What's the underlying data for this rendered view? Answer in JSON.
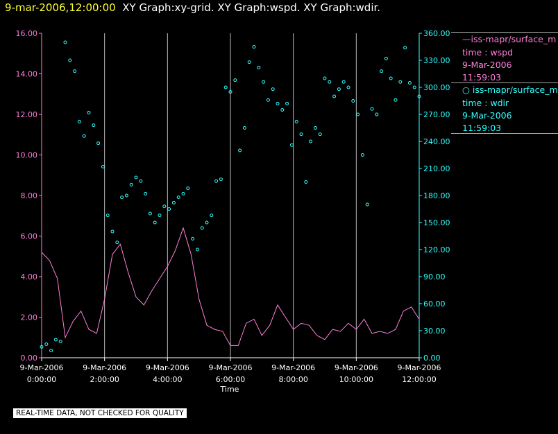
{
  "header": {
    "date_label": "9-mar-2006,12:00:00",
    "graphs_label": "XY Graph:xy-grid.  XY Graph:wspd.  XY Graph:wdir."
  },
  "legend": [
    {
      "line": "iss-mapr/surface_m",
      "var_label": "time : wspd",
      "date": "9-Mar-2006",
      "time": "11:59:03",
      "color": "#ff7fd9"
    },
    {
      "line": "iss-mapr/surface_m",
      "var_label": "time : wdir",
      "date": "9-Mar-2006",
      "time": "11:59:03",
      "color": "#33ffff"
    }
  ],
  "footer": {
    "quality_note": "REAL-TIME DATA, NOT CHECKED FOR QUALITY"
  },
  "chart_data": {
    "type": "line",
    "xlabel": "Time",
    "xlim": [
      "0:00:00",
      "12:00:00"
    ],
    "x_unit": "hours",
    "x_ticks": [
      {
        "hour": 0,
        "date": "9-Mar-2006",
        "time": "0:00:00"
      },
      {
        "hour": 2,
        "date": "9-Mar-2006",
        "time": "2:00:00"
      },
      {
        "hour": 4,
        "date": "9-Mar-2006",
        "time": "4:00:00"
      },
      {
        "hour": 6,
        "date": "9-Mar-2006",
        "time": "6:00:00"
      },
      {
        "hour": 8,
        "date": "9-Mar-2006",
        "time": "8:00:00"
      },
      {
        "hour": 10,
        "date": "9-Mar-2006",
        "time": "10:00:00"
      },
      {
        "hour": 12,
        "date": "9-Mar-2006",
        "time": "12:00:00"
      }
    ],
    "grid": "vertical",
    "y_left": {
      "range": [
        0,
        16
      ],
      "ticks": [
        "0.00",
        "2.00",
        "4.00",
        "6.00",
        "8.00",
        "10.00",
        "12.00",
        "14.00",
        "16.00"
      ],
      "color": "#ff7fd9"
    },
    "y_right": {
      "range": [
        0,
        360
      ],
      "ticks": [
        "0.00",
        "30.00",
        "60.00",
        "90.00",
        "120.00",
        "150.00",
        "180.00",
        "210.00",
        "240.00",
        "270.00",
        "300.00",
        "330.00",
        "360.00"
      ],
      "color": "#33ffff"
    },
    "series": [
      {
        "name": "time : wspd",
        "style": "line",
        "color": "#ff7fd9",
        "axis": "left",
        "x": [
          0,
          0.25,
          0.5,
          0.75,
          1,
          1.25,
          1.5,
          1.75,
          2,
          2.25,
          2.5,
          2.75,
          3,
          3.25,
          3.5,
          3.75,
          4,
          4.25,
          4.5,
          4.75,
          5,
          5.25,
          5.5,
          5.75,
          6,
          6.25,
          6.5,
          6.75,
          7,
          7.25,
          7.5,
          7.75,
          8,
          8.25,
          8.5,
          8.75,
          9,
          9.25,
          9.5,
          9.75,
          10,
          10.25,
          10.5,
          10.75,
          11,
          11.25,
          11.5,
          11.75,
          12
        ],
        "y": [
          5.2,
          4.8,
          3.9,
          1.0,
          1.8,
          2.3,
          1.4,
          1.2,
          2.9,
          5.1,
          5.6,
          4.2,
          3.0,
          2.6,
          3.3,
          3.9,
          4.5,
          5.3,
          6.4,
          5.1,
          2.9,
          1.6,
          1.4,
          1.3,
          0.6,
          0.6,
          1.7,
          1.9,
          1.1,
          1.6,
          2.6,
          2.0,
          1.4,
          1.7,
          1.6,
          1.1,
          0.9,
          1.4,
          1.3,
          1.7,
          1.4,
          1.9,
          1.2,
          1.3,
          1.2,
          1.4,
          2.3,
          2.5,
          1.9
        ]
      },
      {
        "name": "time : wdir",
        "style": "points",
        "color": "#33ffff",
        "axis": "right",
        "x": [
          0,
          0.15,
          0.3,
          0.45,
          0.6,
          0.75,
          0.9,
          1.05,
          1.2,
          1.35,
          1.5,
          1.65,
          1.8,
          1.95,
          2.1,
          2.25,
          2.4,
          2.55,
          2.7,
          2.85,
          3,
          3.15,
          3.3,
          3.45,
          3.6,
          3.75,
          3.9,
          4.05,
          4.2,
          4.35,
          4.5,
          4.65,
          4.8,
          4.95,
          5.1,
          5.25,
          5.4,
          5.55,
          5.7,
          5.85,
          6,
          6.15,
          6.3,
          6.45,
          6.6,
          6.75,
          6.9,
          7.05,
          7.2,
          7.35,
          7.5,
          7.65,
          7.8,
          7.95,
          8.1,
          8.25,
          8.4,
          8.55,
          8.7,
          8.85,
          9,
          9.15,
          9.3,
          9.45,
          9.6,
          9.75,
          9.9,
          10.05,
          10.2,
          10.35,
          10.5,
          10.65,
          10.8,
          10.95,
          11.1,
          11.25,
          11.4,
          11.55,
          11.7,
          11.85,
          12
        ],
        "y": [
          12,
          15,
          8,
          20,
          18,
          350,
          330,
          318,
          262,
          246,
          272,
          258,
          238,
          212,
          158,
          140,
          128,
          178,
          180,
          192,
          200,
          196,
          182,
          160,
          150,
          158,
          168,
          165,
          172,
          178,
          182,
          188,
          132,
          120,
          144,
          150,
          158,
          196,
          198,
          300,
          295,
          308,
          230,
          255,
          328,
          345,
          322,
          306,
          286,
          298,
          282,
          275,
          282,
          236,
          262,
          248,
          195,
          240,
          255,
          248,
          310,
          306,
          290,
          298,
          306,
          300,
          285,
          270,
          225,
          170,
          276,
          270,
          318,
          332,
          310,
          286,
          306,
          344,
          305,
          300,
          290
        ]
      }
    ]
  }
}
